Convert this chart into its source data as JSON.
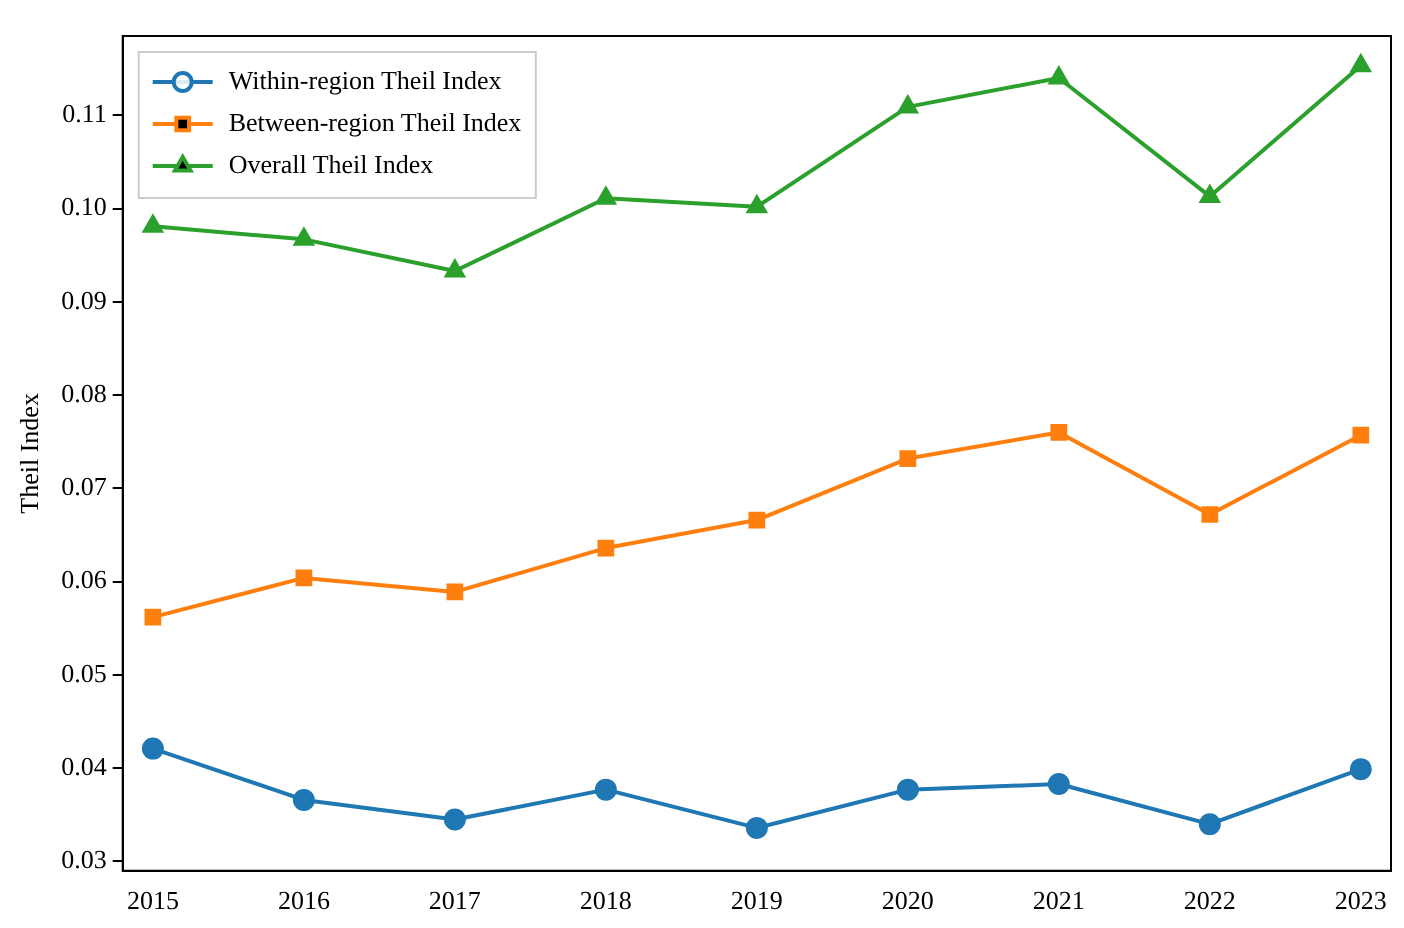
{
  "chart_data": {
    "type": "line",
    "ylabel": "Theil Index",
    "x": [
      2015,
      2016,
      2017,
      2018,
      2019,
      2020,
      2021,
      2022,
      2023
    ],
    "xlim": [
      2014.8,
      2023.2
    ],
    "xticks": [
      2015,
      2016,
      2017,
      2018,
      2019,
      2020,
      2021,
      2022,
      2023
    ],
    "ylim": [
      0.029,
      0.1185
    ],
    "yticks": [
      {
        "value": 0.03,
        "label": "0.03"
      },
      {
        "value": 0.04,
        "label": "0.04"
      },
      {
        "value": 0.05,
        "label": "0.05"
      },
      {
        "value": 0.06,
        "label": "0.06"
      },
      {
        "value": 0.07,
        "label": "0.07"
      },
      {
        "value": 0.08,
        "label": "0.08"
      },
      {
        "value": 0.09,
        "label": "0.09"
      },
      {
        "value": 0.1,
        "label": "0.10"
      },
      {
        "value": 0.11,
        "label": "0.11"
      }
    ],
    "legend": "top left",
    "grid": false,
    "line_style": "solid",
    "series": [
      {
        "name": "Within-region Theil Index",
        "color": "#1f77b4",
        "marker": "circle",
        "values": [
          0.0421,
          0.0366,
          0.0345,
          0.0377,
          0.0336,
          0.0377,
          0.0383,
          0.034,
          0.0399
        ]
      },
      {
        "name": "Between-region Theil Index",
        "color": "#ff7f0e",
        "marker": "square",
        "values": [
          0.0562,
          0.0604,
          0.0589,
          0.0636,
          0.0666,
          0.0732,
          0.076,
          0.0672,
          0.0757
        ]
      },
      {
        "name": "Overall Theil Index",
        "color": "#2ca02c",
        "marker": "triangle",
        "values": [
          0.0981,
          0.0967,
          0.0933,
          0.1011,
          0.1002,
          0.1109,
          0.114,
          0.1013,
          0.1153
        ]
      }
    ]
  }
}
